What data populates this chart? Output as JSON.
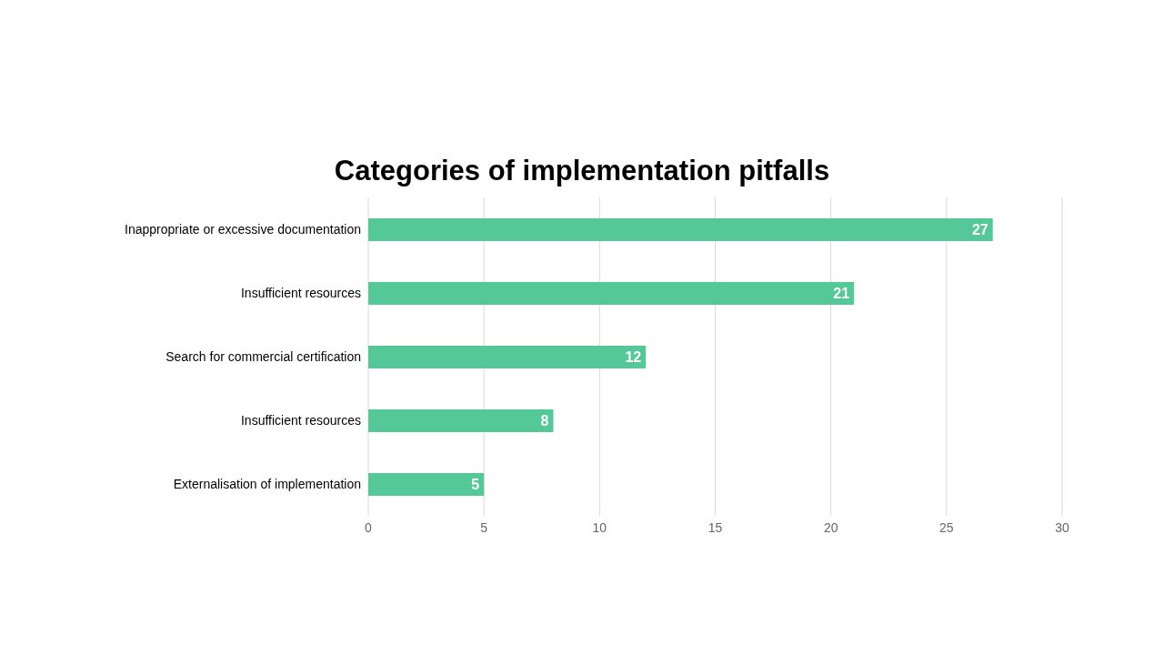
{
  "chart_data": {
    "type": "bar",
    "orientation": "horizontal",
    "title": "Categories of implementation pitfalls",
    "categories": [
      "Inappropriate or excessive documentation",
      "Insufficient resources",
      "Search for commercial certification",
      "Insufficient resources",
      "Externalisation of implementation"
    ],
    "values": [
      27,
      21,
      12,
      8,
      5
    ],
    "color": "#54c896",
    "xlim": [
      0,
      30
    ],
    "xticks": [
      0,
      5,
      10,
      15,
      20,
      25,
      30
    ],
    "grid": "x",
    "data_labels": true
  }
}
